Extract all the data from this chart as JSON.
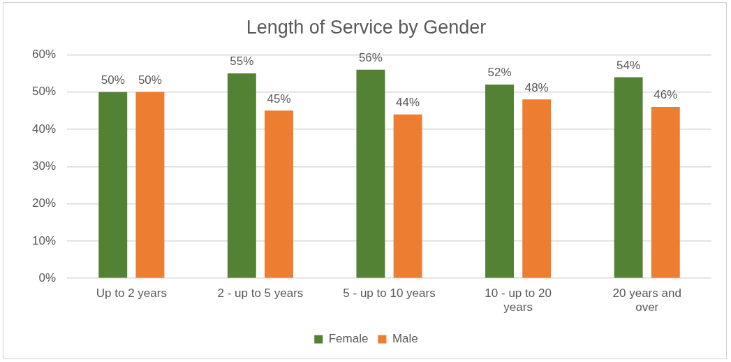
{
  "chart_data": {
    "type": "bar",
    "title": "Length of Service by Gender",
    "categories": [
      "Up to 2 years",
      "2 - up to 5 years",
      "5 - up to 10 years",
      "10 - up to 20 years",
      "20 years and over"
    ],
    "series": [
      {
        "name": "Female",
        "color": "#548235",
        "values": [
          50,
          55,
          56,
          52,
          54
        ],
        "value_labels": [
          "50%",
          "55%",
          "56%",
          "52%",
          "54%"
        ]
      },
      {
        "name": "Male",
        "color": "#ed7d31",
        "values": [
          50,
          45,
          44,
          48,
          46
        ],
        "value_labels": [
          "50%",
          "45%",
          "44%",
          "48%",
          "46%"
        ]
      }
    ],
    "ylim": [
      0,
      60
    ],
    "yticks": [
      {
        "value": 0,
        "label": "0%"
      },
      {
        "value": 10,
        "label": "10%"
      },
      {
        "value": 20,
        "label": "20%"
      },
      {
        "value": 30,
        "label": "30%"
      },
      {
        "value": 40,
        "label": "40%"
      },
      {
        "value": 50,
        "label": "50%"
      },
      {
        "value": 60,
        "label": "60%"
      }
    ],
    "grid": "y",
    "legend": "bottom"
  }
}
